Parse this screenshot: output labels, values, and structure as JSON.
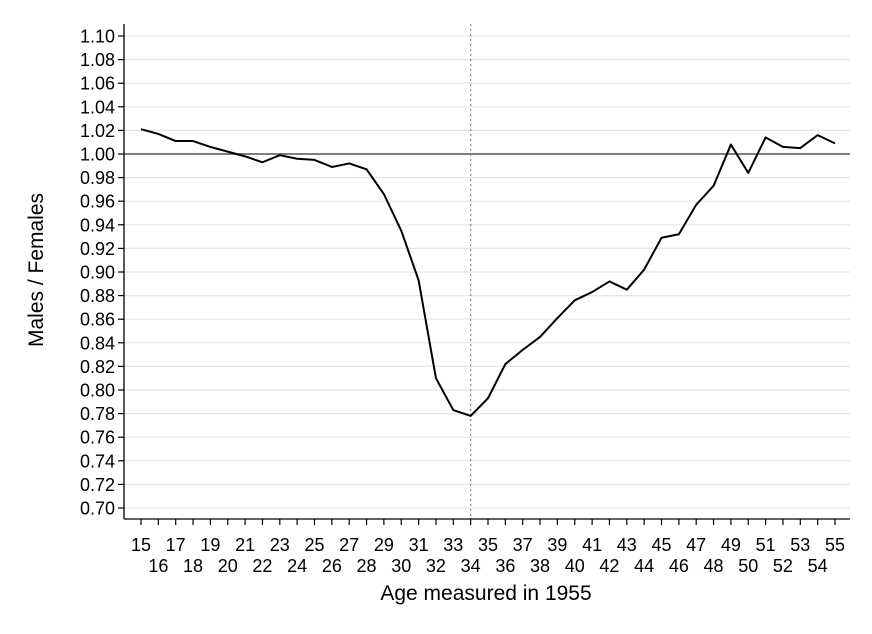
{
  "chart_data": {
    "type": "line",
    "xlabel": "Age measured in 1955",
    "ylabel": "Males / Females",
    "xlim": [
      15,
      55
    ],
    "ylim": [
      0.7,
      1.1
    ],
    "y_tick_step": 0.02,
    "grid": true,
    "reference_line_y": 1.0,
    "reference_line_x": 34,
    "x": [
      15,
      16,
      17,
      18,
      19,
      20,
      21,
      22,
      23,
      24,
      25,
      26,
      27,
      28,
      29,
      30,
      31,
      32,
      33,
      34,
      35,
      36,
      37,
      38,
      39,
      40,
      41,
      42,
      43,
      44,
      45,
      46,
      47,
      48,
      49,
      50,
      51,
      52,
      53,
      54,
      55
    ],
    "values": [
      1.021,
      1.017,
      1.011,
      1.011,
      1.006,
      1.002,
      0.998,
      0.993,
      0.999,
      0.996,
      0.995,
      0.989,
      0.992,
      0.987,
      0.966,
      0.935,
      0.893,
      0.81,
      0.783,
      0.778,
      0.793,
      0.822,
      0.834,
      0.845,
      0.861,
      0.876,
      0.883,
      0.892,
      0.885,
      0.902,
      0.929,
      0.932,
      0.957,
      0.973,
      1.008,
      0.984,
      1.014,
      1.006,
      1.005,
      1.016,
      1.009
    ],
    "colors": {
      "line": "#000000",
      "grid": "#e5e5e5",
      "reference": "#555555"
    }
  }
}
